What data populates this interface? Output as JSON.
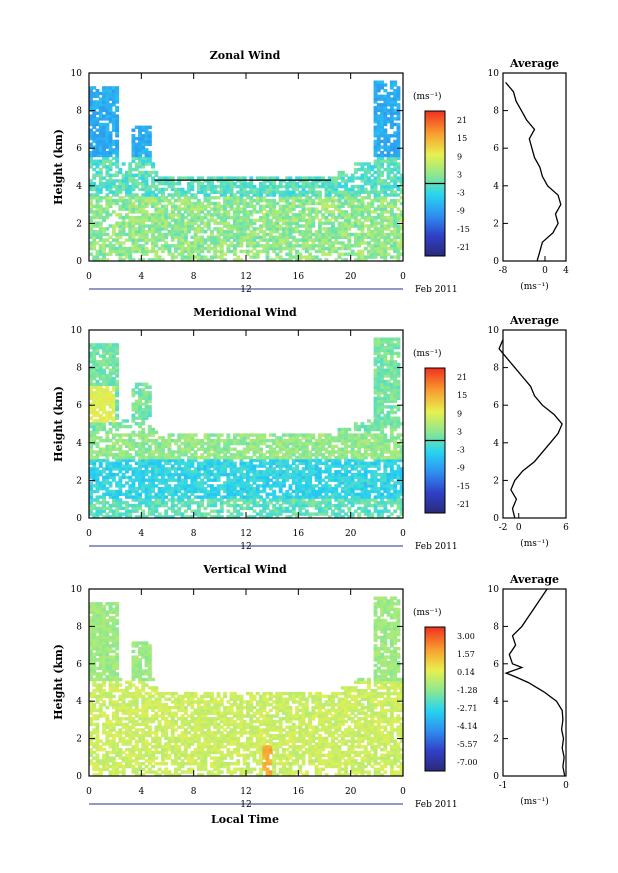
{
  "chart_data": [
    {
      "type": "heatmap",
      "title": "Zonal Wind",
      "ylabel": "Height (km)",
      "xlabel": "",
      "x_ticks": [
        "0",
        "4",
        "8",
        "12",
        "16",
        "20",
        "0"
      ],
      "y_ticks": [
        "0",
        "2",
        "4",
        "6",
        "8",
        "10"
      ],
      "xlim": [
        0,
        24
      ],
      "ylim": [
        0,
        10
      ],
      "date_mark": "12",
      "date_label": "Feb 2011",
      "colorbar": {
        "unit": "(ms⁻¹)",
        "ticks": [
          "21",
          "15",
          "9",
          "3",
          "-3",
          "-9",
          "-15",
          "-21"
        ],
        "range": [
          -24,
          24
        ]
      },
      "average": {
        "title": "Average",
        "xlabel": "(ms⁻¹)",
        "x_ticks": [
          "-8",
          "0",
          "4"
        ],
        "xlim": [
          -8,
          4
        ],
        "y": [
          0,
          0.5,
          1,
          1.5,
          2,
          2.5,
          3,
          3.5,
          4,
          4.5,
          5,
          5.5,
          6,
          6.5,
          7,
          7.5,
          8,
          8.5,
          9,
          9.5
        ],
        "x": [
          -1.5,
          -1.0,
          -0.5,
          1.5,
          2.5,
          2.0,
          3.0,
          2.5,
          0.5,
          -0.5,
          -1.0,
          -2.0,
          -2.5,
          -3.0,
          -2.0,
          -3.5,
          -4.5,
          -5.5,
          -6.0,
          -7.5
        ]
      }
    },
    {
      "type": "heatmap",
      "title": "Meridional Wind",
      "ylabel": "Height (km)",
      "xlabel": "",
      "x_ticks": [
        "0",
        "4",
        "8",
        "12",
        "16",
        "20",
        "0"
      ],
      "y_ticks": [
        "0",
        "2",
        "4",
        "6",
        "8",
        "10"
      ],
      "xlim": [
        0,
        24
      ],
      "ylim": [
        0,
        10
      ],
      "date_mark": "12",
      "date_label": "Feb 2011",
      "colorbar": {
        "unit": "(ms⁻¹)",
        "ticks": [
          "21",
          "15",
          "9",
          "3",
          "-3",
          "-9",
          "-15",
          "-21"
        ],
        "range": [
          -24,
          24
        ]
      },
      "average": {
        "title": "Average",
        "xlabel": "(ms⁻¹)",
        "x_ticks": [
          "-2",
          "0",
          "6"
        ],
        "xlim": [
          -2,
          6
        ],
        "y": [
          0,
          0.5,
          1,
          1.5,
          2,
          2.5,
          3,
          3.5,
          4,
          4.5,
          5,
          5.5,
          6,
          6.5,
          7,
          7.5,
          8,
          8.5,
          9,
          9.5
        ],
        "x": [
          -0.5,
          -0.8,
          -0.3,
          -1.0,
          -0.5,
          0.5,
          2.0,
          3.0,
          4.0,
          5.0,
          5.5,
          4.5,
          3.0,
          2.0,
          1.5,
          0.5,
          -0.5,
          -1.5,
          -2.5,
          -2.0
        ]
      }
    },
    {
      "type": "heatmap",
      "title": "Vertical Wind",
      "ylabel": "Height (km)",
      "xlabel": "Local Time",
      "x_ticks": [
        "0",
        "4",
        "8",
        "12",
        "16",
        "20",
        "0"
      ],
      "y_ticks": [
        "0",
        "2",
        "4",
        "6",
        "8",
        "10"
      ],
      "xlim": [
        0,
        24
      ],
      "ylim": [
        0,
        10
      ],
      "date_mark": "12",
      "date_label": "Feb 2011",
      "colorbar": {
        "unit": "(ms⁻¹)",
        "ticks": [
          "3.00",
          "1.57",
          "0.14",
          "-1.28",
          "-2.71",
          "-4.14",
          "-5.57",
          "-7.00"
        ],
        "range": [
          -7.7,
          3.7
        ]
      },
      "average": {
        "title": "Average",
        "xlabel": "(ms⁻¹)",
        "x_ticks": [
          "-1",
          "0"
        ],
        "xlim": [
          -1,
          0
        ],
        "y": [
          0,
          0.5,
          1,
          1.5,
          2,
          2.5,
          3,
          3.5,
          4,
          4.5,
          5,
          5.3,
          5.5,
          5.8,
          6,
          6.5,
          7,
          7.5,
          8,
          8.5,
          9,
          9.5,
          10
        ],
        "x": [
          -0.02,
          -0.05,
          -0.03,
          -0.06,
          -0.04,
          -0.07,
          -0.05,
          -0.06,
          -0.15,
          -0.35,
          -0.6,
          -0.8,
          -0.95,
          -0.7,
          -0.85,
          -0.9,
          -0.8,
          -0.85,
          -0.7,
          -0.6,
          -0.5,
          -0.4,
          -0.3
        ]
      }
    }
  ]
}
